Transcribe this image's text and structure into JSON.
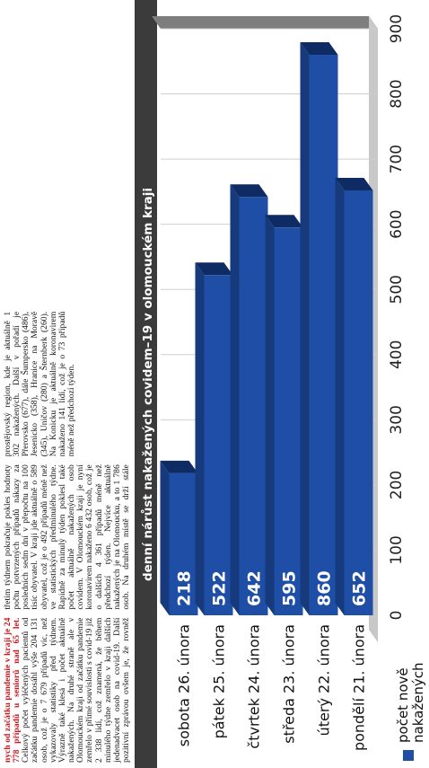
{
  "article": {
    "lead_red": "nych od začátku pandemie v kraji je 24 778 případů u seniorů nad 65 let.",
    "text": "Celkový počet vyléčených pacientů od začátku pandemie dosáhl výše 204 131 osob, což je o 7 679 případů víc, než vykazovaly statistiky před týdnem. Výrazně také klesá i počet aktuálně nakažených. Na druhé straně ale v Olomouckém kraji od začátku pandemie zemřelo v přímé souvislosti s covid-19 již 2 338 lidí, což znamená, že během minulého týdne zemřelo v kraji dalších jedenadvacet osob na covid-19. Další pozitivní zprávou ovšem je, že rovněž třetím týdnem pokračuje pokles hodnoty počtu potvrzených případů nákazy za posledních sedm dní v přepočtu na 100 tisíc obyvatel. V kraji jde aktuálně o 589 obyvatel, což je o 492 případů méně než ve statistických předminulého týdne. Rapidně za minulý týden poklesl také počet aktuálně nakažených osob covidem. V Olomouckém kraji je nyní koronavirem nakaženo 6 432 osob, což je o dalších 4 361 případů méně než předchozí týden. Nejvíce aktuálně nakažených je na Olomoucku, a to 1 786 osob. Na druhém místě se drží stále prostějovský region, kde je aktuálně 1 302 nakažených. Další v pořadí je Přerovsko (677), dále Šumpersko (486), Jesenicko (358), Hranice na Moravě (345), Uničov (280) a Šternberk (260). Na Konicku je aktuálně koronavirem nakaženo 141 lidí, což je o 73 případů méně než předchozí týden."
  },
  "chart_data": {
    "type": "bar",
    "orientation": "horizontal",
    "title": "denní nárůst nakažených covidem–19 v olomouckém kraji",
    "categories": [
      "sobota 26. února",
      "pátek 25. února",
      "čtvrtek 24. února",
      "středa 23. února",
      "úterý 22. února",
      "pondělí 21. února"
    ],
    "series": [
      {
        "name": "počet nově nakažených",
        "values": [
          218,
          522,
          642,
          595,
          860,
          652
        ]
      }
    ],
    "xlim": [
      0,
      900
    ],
    "ticks": [
      0,
      100,
      200,
      300,
      400,
      500,
      600,
      700,
      800,
      900
    ],
    "grid": true,
    "legend_position": "bottom-left",
    "colors": {
      "bar_front": "#1f4ea6",
      "bar_top": "#163a7c",
      "bar_side": "#0e2b63",
      "title_band": "#3b3b3b",
      "title_text": "#ffffff",
      "value_text": "#ffffff",
      "floor": "#c8c8c8",
      "wall": "#7e7e7e",
      "grid": "#cfcfcf"
    }
  }
}
